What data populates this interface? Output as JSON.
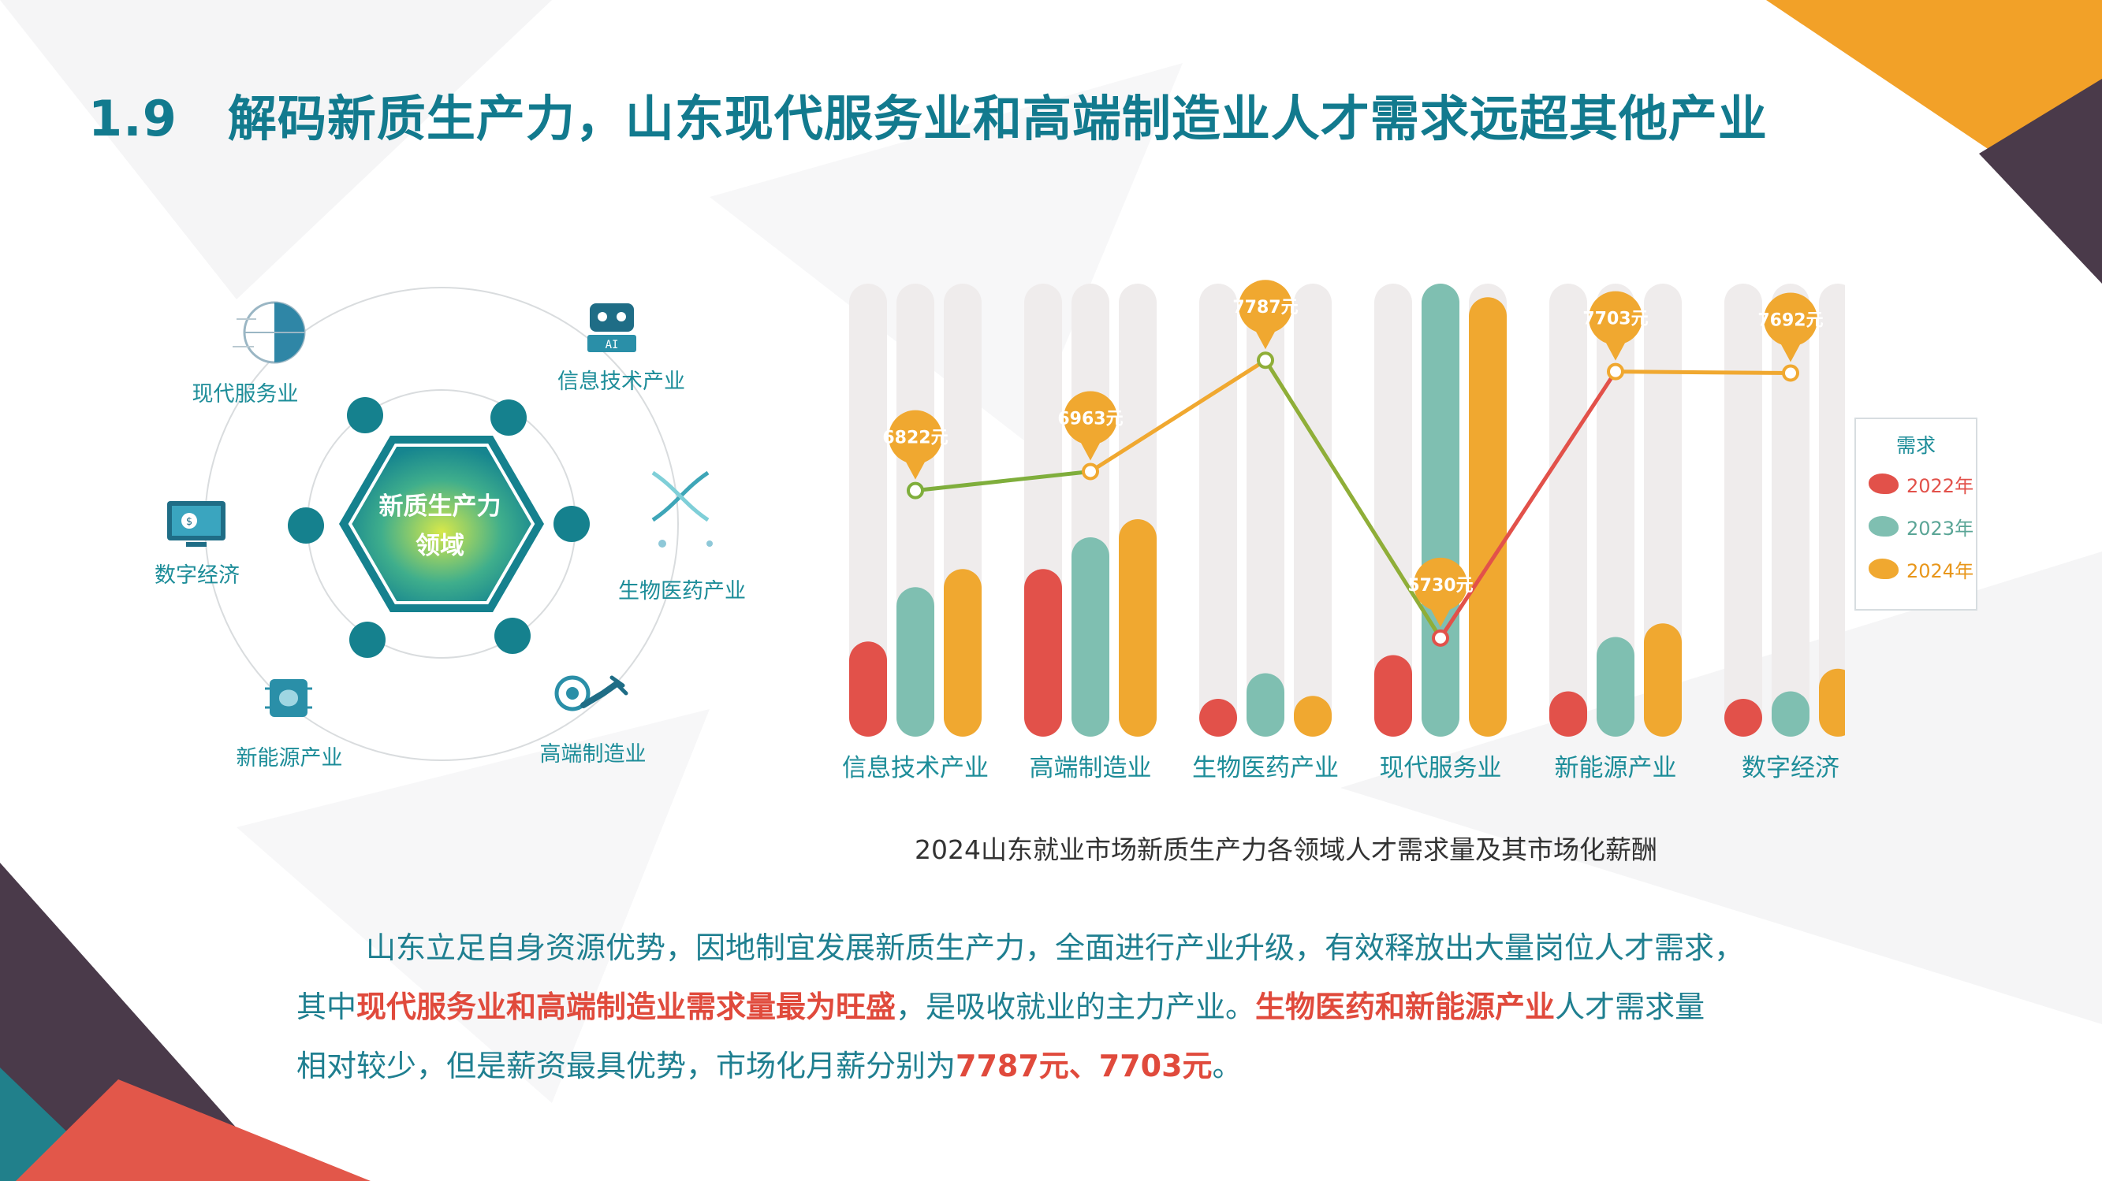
{
  "page": {
    "section_number": "1.9",
    "title": "解码新质生产力，山东现代服务业和高端制造业人才需求远超其他产业"
  },
  "hub": {
    "center": [
      "新质生产力",
      "领域"
    ],
    "items": [
      {
        "label": "现代服务业",
        "icon": "globe-network-icon"
      },
      {
        "label": "信息技术产业",
        "icon": "robot-icon"
      },
      {
        "label": "生物医药产业",
        "icon": "dna-icon"
      },
      {
        "label": "高端制造业",
        "icon": "robotic-arm-icon"
      },
      {
        "label": "新能源产业",
        "icon": "chip-brain-icon"
      },
      {
        "label": "数字经济",
        "icon": "monitor-currency-icon"
      }
    ]
  },
  "chart_data": {
    "type": "bar",
    "title": "2024山东就业市场新质生产力各领域人才需求量及其市场化薪酬",
    "categories": [
      "信息技术产业",
      "高端制造业",
      "生物医药产业",
      "现代服务业",
      "新能源产业",
      "数字经济"
    ],
    "legend_title": "需求",
    "legend_position": "right",
    "ylim": [
      0,
      100
    ],
    "series": [
      {
        "name": "2022年",
        "color": "#e2514a",
        "values": [
          21,
          37,
          8,
          18,
          10,
          8
        ]
      },
      {
        "name": "2023年",
        "color": "#7fbfb1",
        "values": [
          33,
          44,
          14,
          100,
          22,
          10
        ]
      },
      {
        "name": "2024年",
        "color": "#f0a830",
        "values": [
          37,
          48,
          9,
          97,
          25,
          15
        ]
      }
    ],
    "salary_line": {
      "values": [
        6822,
        6963,
        7787,
        5730,
        7703,
        7692
      ],
      "labels": [
        "6822元",
        "6963元",
        "7787元",
        "5730元",
        "7703元",
        "7692元"
      ],
      "ylim": [
        5000,
        8500
      ],
      "segment_colors": [
        "#7fae3c",
        "#f0a830",
        "#8fae38",
        "#e2514a",
        "#f0a830"
      ]
    },
    "grid": false
  },
  "paragraph": {
    "line1": "山东立足自身资源优势，因地制宜发展新质生产力，全面进行产业升级，有效释放出大量岗位人才需求，",
    "line2_a": "其中",
    "line2_b": "现代服务业和高端制造业需求量最为旺盛",
    "line2_c": "，是吸收就业的主力产业。",
    "line2_d": "生物医药和新能源产业",
    "line2_e": "人才需求量",
    "line3_a": "相对较少，但是薪资最具优势，市场化月薪分别为",
    "line3_b": "7787元、7703元",
    "line3_c": "。"
  },
  "colors": {
    "teal": "#127a8e",
    "red": "#e2514a",
    "green": "#7fbfb1",
    "orange": "#f0a830",
    "dark_purple": "#4a3a4a"
  }
}
